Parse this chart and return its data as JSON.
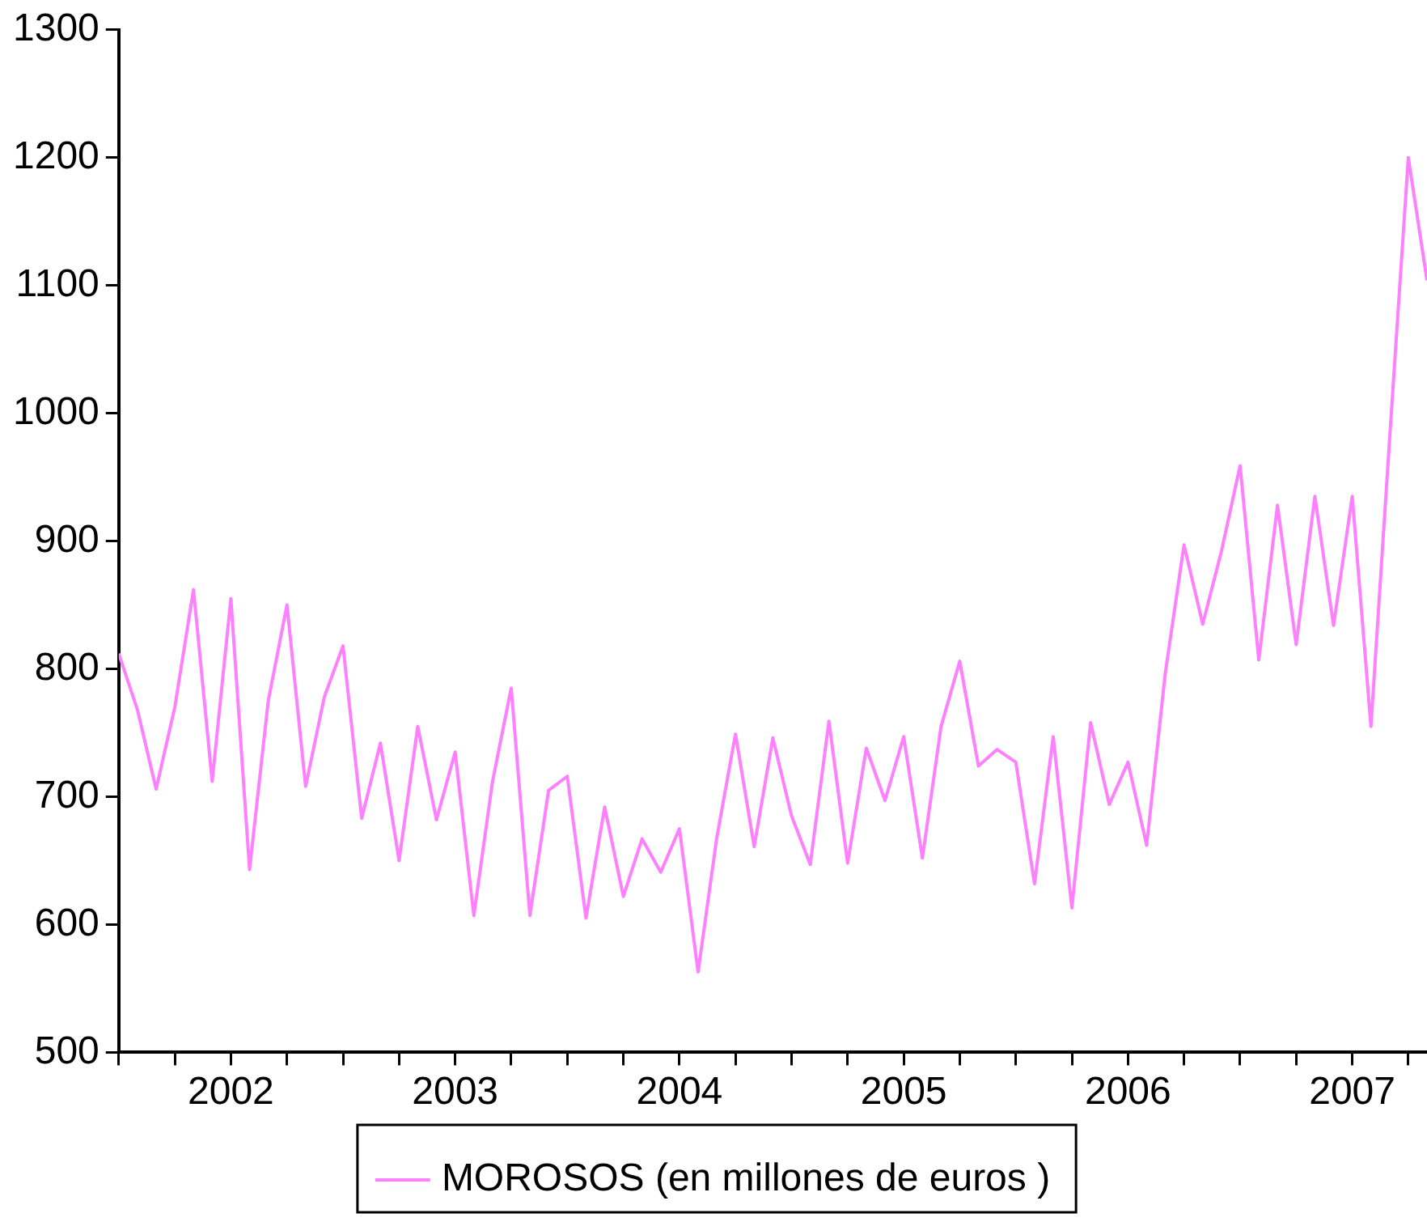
{
  "chart_data": {
    "type": "line",
    "legend": "bottom",
    "grid": false,
    "marker": "none",
    "line_style": "solid",
    "x": [
      "2002-01",
      "2002-02",
      "2002-03",
      "2002-04",
      "2002-05",
      "2002-06",
      "2002-07",
      "2002-08",
      "2002-09",
      "2002-10",
      "2002-11",
      "2002-12",
      "2003-01",
      "2003-02",
      "2003-03",
      "2003-04",
      "2003-05",
      "2003-06",
      "2003-07",
      "2003-08",
      "2003-09",
      "2003-10",
      "2003-11",
      "2003-12",
      "2004-01",
      "2004-02",
      "2004-03",
      "2004-04",
      "2004-05",
      "2004-06",
      "2004-07",
      "2004-08",
      "2004-09",
      "2004-10",
      "2004-11",
      "2004-12",
      "2005-01",
      "2005-02",
      "2005-03",
      "2005-04",
      "2005-05",
      "2005-06",
      "2005-07",
      "2005-08",
      "2005-09",
      "2005-10",
      "2005-11",
      "2005-12",
      "2006-01",
      "2006-02",
      "2006-03",
      "2006-04",
      "2006-05",
      "2006-06",
      "2006-07",
      "2006-08",
      "2006-09",
      "2006-10",
      "2006-11",
      "2006-12",
      "2007-01",
      "2007-02",
      "2007-03",
      "2007-04",
      "2007-05",
      "2007-06",
      "2007-07",
      "2007-08",
      "2007-09",
      "2007-10",
      "2007-11"
    ],
    "series": [
      {
        "name": "MOROSOS (en millones de euros )",
        "color": "#ff80ff",
        "values": [
          812,
          768,
          706,
          770,
          862,
          712,
          855,
          643,
          775,
          850,
          708,
          778,
          818,
          683,
          742,
          650,
          755,
          682,
          735,
          607,
          712,
          785,
          607,
          705,
          716,
          605,
          692,
          622,
          667,
          641,
          675,
          563,
          668,
          749,
          661,
          746,
          685,
          647,
          759,
          648,
          738,
          697,
          747,
          652,
          755,
          806,
          724,
          737,
          727,
          632,
          747,
          613,
          758,
          694,
          727,
          662,
          797,
          897,
          835,
          892,
          959,
          807,
          928,
          819,
          935,
          834,
          935,
          755,
          980,
          1200,
          1104
        ]
      }
    ],
    "xlim": [
      "2002-01",
      "2007-11"
    ],
    "xticks": [
      {
        "value": "2002-01",
        "label": null
      },
      {
        "value": "2002-04",
        "label": null
      },
      {
        "value": "2002-07",
        "label": "2002"
      },
      {
        "value": "2002-10",
        "label": null
      },
      {
        "value": "2003-01",
        "label": null
      },
      {
        "value": "2003-04",
        "label": null
      },
      {
        "value": "2003-07",
        "label": "2003"
      },
      {
        "value": "2003-10",
        "label": null
      },
      {
        "value": "2004-01",
        "label": null
      },
      {
        "value": "2004-04",
        "label": null
      },
      {
        "value": "2004-07",
        "label": "2004"
      },
      {
        "value": "2004-10",
        "label": null
      },
      {
        "value": "2005-01",
        "label": null
      },
      {
        "value": "2005-04",
        "label": null
      },
      {
        "value": "2005-07",
        "label": "2005"
      },
      {
        "value": "2005-10",
        "label": null
      },
      {
        "value": "2006-01",
        "label": null
      },
      {
        "value": "2006-04",
        "label": null
      },
      {
        "value": "2006-07",
        "label": "2006"
      },
      {
        "value": "2006-10",
        "label": null
      },
      {
        "value": "2007-01",
        "label": null
      },
      {
        "value": "2007-04",
        "label": null
      },
      {
        "value": "2007-07",
        "label": "2007"
      },
      {
        "value": "2007-10",
        "label": null
      }
    ],
    "ylim": [
      500,
      1300
    ],
    "yticks": [
      500,
      600,
      700,
      800,
      900,
      1000,
      1100,
      1200,
      1300
    ]
  }
}
